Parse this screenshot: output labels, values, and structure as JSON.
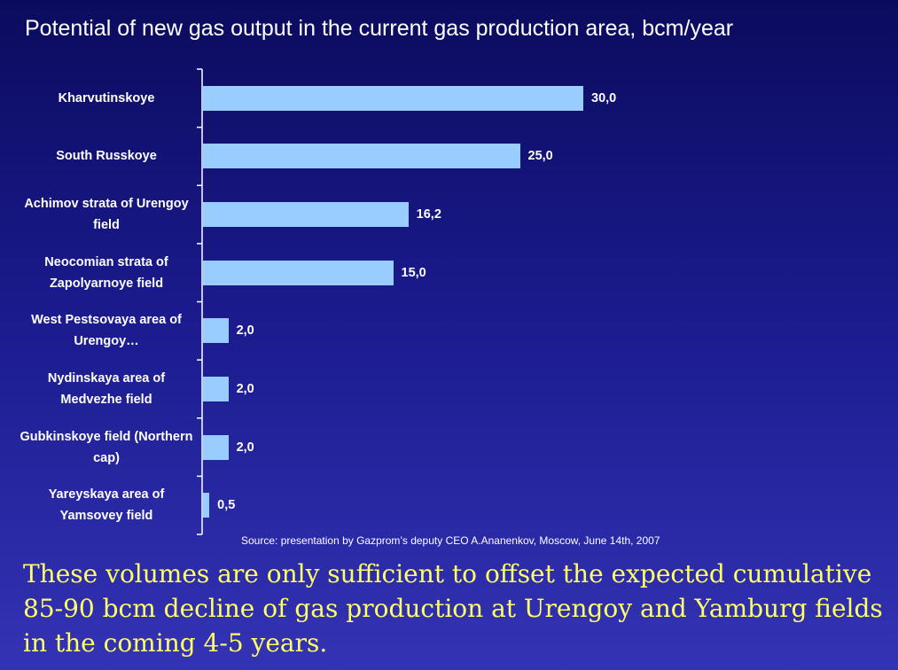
{
  "chart_data": {
    "type": "barh",
    "title": "Potential of new gas output in the current gas production area, bcm/year",
    "categories": [
      "Kharvutinskoye",
      "South Russkoye",
      "Achimov strata of Urengoy field",
      "Neocomian strata of Zapolyarnoye field",
      "West Pestsovaya area of Urengoy…",
      "Nydinskaya area of Medvezhe field",
      "Gubkinskoye field (Northern cap)",
      "Yareyskaya area of Yamsovey field"
    ],
    "values": [
      30,
      25,
      16.2,
      15,
      2,
      2,
      2,
      0.5
    ],
    "value_labels": [
      "30,0",
      "25,0",
      "16,2",
      "15,0",
      "2,0",
      "2,0",
      "2,0",
      "0,5"
    ],
    "color": "#99ccff",
    "xlim": [
      0,
      30
    ],
    "source": "Source: presentation by Gazprom’s deputy CEO A.Ananenkov, Moscow, June 14th, 2007",
    "annotation": "These volumes are only sufficient to offset the expected cumulative 85-90 bcm decline of gas production at Urengoy and Yamburg fields in the coming 4-5 years."
  }
}
